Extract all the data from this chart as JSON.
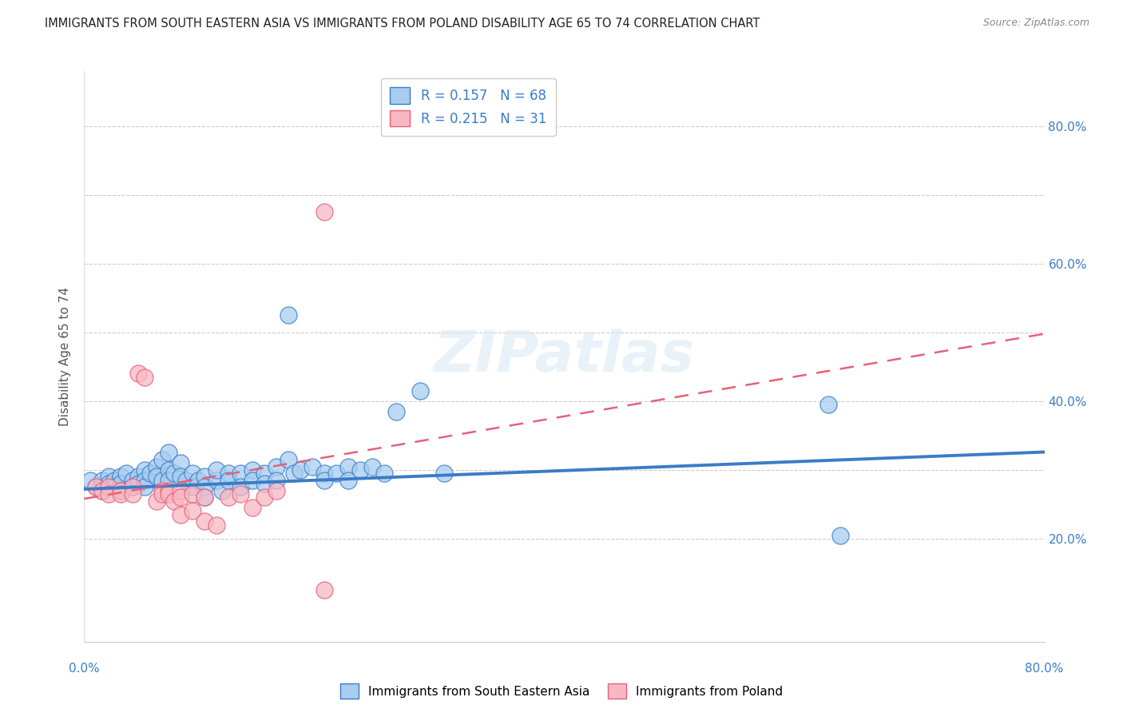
{
  "title": "IMMIGRANTS FROM SOUTH EASTERN ASIA VS IMMIGRANTS FROM POLAND DISABILITY AGE 65 TO 74 CORRELATION CHART",
  "source": "Source: ZipAtlas.com",
  "ylabel": "Disability Age 65 to 74",
  "xmin": 0.0,
  "xmax": 0.8,
  "ymin": 0.05,
  "ymax": 0.88,
  "r_blue": 0.157,
  "n_blue": 68,
  "r_pink": 0.215,
  "n_pink": 31,
  "color_blue_fill": "#A8CDEF",
  "color_pink_fill": "#F7B8C4",
  "color_blue_line": "#3A7CC7",
  "color_pink_line": "#E8607A",
  "legend_label_blue": "Immigrants from South Eastern Asia",
  "legend_label_pink": "Immigrants from Poland",
  "watermark": "ZIPatlas",
  "blue_trend_x": [
    0.0,
    0.8
  ],
  "blue_trend_y": [
    0.272,
    0.326
  ],
  "pink_trend_x": [
    0.0,
    0.8
  ],
  "pink_trend_y": [
    0.258,
    0.498
  ],
  "blue_points": [
    [
      0.005,
      0.285
    ],
    [
      0.01,
      0.275
    ],
    [
      0.015,
      0.285
    ],
    [
      0.015,
      0.27
    ],
    [
      0.02,
      0.29
    ],
    [
      0.02,
      0.28
    ],
    [
      0.025,
      0.285
    ],
    [
      0.025,
      0.275
    ],
    [
      0.03,
      0.29
    ],
    [
      0.03,
      0.28
    ],
    [
      0.03,
      0.27
    ],
    [
      0.035,
      0.295
    ],
    [
      0.04,
      0.285
    ],
    [
      0.04,
      0.275
    ],
    [
      0.045,
      0.29
    ],
    [
      0.045,
      0.28
    ],
    [
      0.05,
      0.3
    ],
    [
      0.05,
      0.285
    ],
    [
      0.05,
      0.275
    ],
    [
      0.055,
      0.295
    ],
    [
      0.06,
      0.305
    ],
    [
      0.06,
      0.29
    ],
    [
      0.065,
      0.315
    ],
    [
      0.065,
      0.285
    ],
    [
      0.07,
      0.325
    ],
    [
      0.07,
      0.3
    ],
    [
      0.07,
      0.285
    ],
    [
      0.075,
      0.295
    ],
    [
      0.08,
      0.31
    ],
    [
      0.08,
      0.29
    ],
    [
      0.085,
      0.285
    ],
    [
      0.09,
      0.295
    ],
    [
      0.09,
      0.275
    ],
    [
      0.095,
      0.285
    ],
    [
      0.1,
      0.29
    ],
    [
      0.1,
      0.275
    ],
    [
      0.1,
      0.26
    ],
    [
      0.11,
      0.285
    ],
    [
      0.11,
      0.3
    ],
    [
      0.115,
      0.27
    ],
    [
      0.12,
      0.295
    ],
    [
      0.12,
      0.285
    ],
    [
      0.13,
      0.295
    ],
    [
      0.13,
      0.275
    ],
    [
      0.14,
      0.3
    ],
    [
      0.14,
      0.285
    ],
    [
      0.15,
      0.295
    ],
    [
      0.15,
      0.28
    ],
    [
      0.16,
      0.305
    ],
    [
      0.16,
      0.285
    ],
    [
      0.17,
      0.315
    ],
    [
      0.175,
      0.295
    ],
    [
      0.18,
      0.3
    ],
    [
      0.19,
      0.305
    ],
    [
      0.2,
      0.295
    ],
    [
      0.2,
      0.285
    ],
    [
      0.21,
      0.295
    ],
    [
      0.22,
      0.305
    ],
    [
      0.22,
      0.285
    ],
    [
      0.23,
      0.3
    ],
    [
      0.24,
      0.305
    ],
    [
      0.25,
      0.295
    ],
    [
      0.26,
      0.385
    ],
    [
      0.28,
      0.415
    ],
    [
      0.3,
      0.295
    ],
    [
      0.17,
      0.525
    ],
    [
      0.62,
      0.395
    ],
    [
      0.63,
      0.205
    ]
  ],
  "pink_points": [
    [
      0.01,
      0.275
    ],
    [
      0.015,
      0.27
    ],
    [
      0.02,
      0.275
    ],
    [
      0.02,
      0.265
    ],
    [
      0.03,
      0.27
    ],
    [
      0.03,
      0.265
    ],
    [
      0.04,
      0.275
    ],
    [
      0.04,
      0.265
    ],
    [
      0.045,
      0.44
    ],
    [
      0.05,
      0.435
    ],
    [
      0.06,
      0.255
    ],
    [
      0.065,
      0.27
    ],
    [
      0.065,
      0.265
    ],
    [
      0.07,
      0.27
    ],
    [
      0.07,
      0.265
    ],
    [
      0.075,
      0.255
    ],
    [
      0.08,
      0.27
    ],
    [
      0.08,
      0.26
    ],
    [
      0.08,
      0.235
    ],
    [
      0.09,
      0.265
    ],
    [
      0.09,
      0.24
    ],
    [
      0.1,
      0.26
    ],
    [
      0.1,
      0.225
    ],
    [
      0.11,
      0.22
    ],
    [
      0.12,
      0.26
    ],
    [
      0.13,
      0.265
    ],
    [
      0.14,
      0.245
    ],
    [
      0.15,
      0.26
    ],
    [
      0.16,
      0.27
    ],
    [
      0.2,
      0.125
    ],
    [
      0.2,
      0.675
    ]
  ]
}
